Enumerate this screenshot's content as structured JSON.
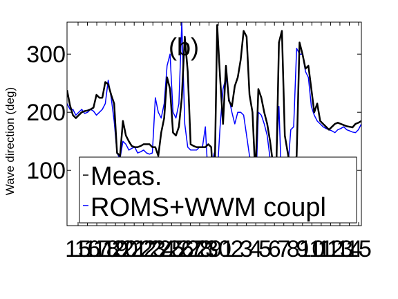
{
  "chart_data": {
    "type": "line",
    "panel_label": "(b)",
    "ylabel": "Wave direction (deg)",
    "xlabel": "",
    "ylim": [
      5,
      355
    ],
    "xlim": [
      0,
      100
    ],
    "y_ticks": [
      100,
      200,
      300
    ],
    "x_tick_labels": [
      "15",
      "16",
      "17",
      "18",
      "19",
      "20",
      "21",
      "22",
      "23",
      "24",
      "25",
      "26",
      "27",
      "28",
      "29",
      "30",
      "1",
      "2",
      "3",
      "4",
      "5",
      "6",
      "7",
      "8",
      "9",
      "10",
      "11",
      "12",
      "13",
      "14",
      "15"
    ],
    "grid": false,
    "legend": {
      "placement": "bottom-left",
      "entries": [
        "Meas.",
        "ROMS+WWM coupl"
      ]
    },
    "colors": {
      "measured": "#000000",
      "model": "#0000ff"
    },
    "series": [
      {
        "name": "Meas.",
        "x": [
          0,
          1,
          2,
          3,
          4,
          5,
          6,
          7,
          8,
          9,
          10,
          11,
          12,
          13,
          14,
          15,
          16,
          17,
          18,
          19,
          20,
          21,
          22,
          23,
          24,
          25,
          26,
          27,
          28,
          29,
          30,
          31,
          32,
          33,
          34,
          35,
          36,
          37,
          38,
          39,
          40,
          41,
          42,
          43,
          44,
          45,
          46,
          47,
          48,
          49,
          50,
          51,
          52,
          53,
          54,
          55,
          56,
          57,
          58,
          59,
          60,
          61,
          62,
          63,
          64,
          65,
          66,
          67,
          68,
          69,
          70,
          71,
          72,
          73,
          74,
          75,
          76,
          77,
          78,
          79,
          80,
          81,
          82,
          83,
          84,
          85,
          86,
          87,
          88,
          89,
          90,
          91,
          92,
          93,
          94,
          95,
          96,
          97,
          98,
          99,
          100
        ],
        "y": [
          238,
          212,
          195,
          190,
          195,
          200,
          202,
          203,
          205,
          208,
          230,
          225,
          225,
          252,
          248,
          230,
          215,
          130,
          125,
          185,
          160,
          150,
          142,
          140,
          140,
          142,
          145,
          145,
          145,
          140,
          140,
          125,
          165,
          190,
          260,
          240,
          165,
          160,
          175,
          225,
          330,
          270,
          145,
          142,
          140,
          140,
          140,
          140,
          145,
          140,
          40,
          350,
          260,
          180,
          280,
          220,
          210,
          245,
          260,
          290,
          340,
          330,
          230,
          200,
          90,
          240,
          225,
          200,
          180,
          150,
          110,
          80,
          320,
          340,
          160,
          130,
          100,
          105,
          125,
          320,
          300,
          275,
          280,
          240,
          200,
          215,
          185,
          180,
          175,
          170,
          175,
          180,
          182,
          180,
          178,
          176,
          175,
          174,
          180,
          182,
          185
        ]
      },
      {
        "name": "ROMS+WWM coupl",
        "x": [
          0,
          1,
          2,
          3,
          4,
          5,
          6,
          7,
          8,
          9,
          10,
          11,
          12,
          13,
          14,
          15,
          16,
          17,
          18,
          19,
          20,
          21,
          22,
          23,
          24,
          25,
          26,
          27,
          28,
          29,
          30,
          31,
          32,
          33,
          34,
          35,
          36,
          37,
          38,
          39,
          40,
          41,
          42,
          43,
          44,
          45,
          46,
          47,
          48,
          49,
          50,
          51,
          52,
          53,
          54,
          55,
          56,
          57,
          58,
          59,
          60,
          61,
          62,
          63,
          64,
          65,
          66,
          67,
          68,
          69,
          70,
          71,
          72,
          73,
          74,
          75,
          76,
          77,
          78,
          79,
          80,
          81,
          82,
          83,
          84,
          85,
          86,
          87,
          88,
          89,
          90,
          91,
          92,
          93,
          94,
          95,
          96,
          97,
          98,
          99,
          100
        ],
        "y": [
          215,
          205,
          205,
          195,
          200,
          205,
          198,
          200,
          205,
          202,
          195,
          200,
          205,
          215,
          255,
          225,
          185,
          130,
          120,
          150,
          145,
          135,
          138,
          140,
          130,
          132,
          135,
          130,
          128,
          130,
          225,
          200,
          190,
          215,
          280,
          300,
          200,
          190,
          215,
          355,
          180,
          140,
          135,
          135,
          135,
          140,
          140,
          175,
          80,
          105,
          130,
          90,
          175,
          240,
          260,
          225,
          200,
          180,
          200,
          200,
          195,
          160,
          125,
          110,
          45,
          200,
          195,
          180,
          160,
          120,
          105,
          115,
          210,
          60,
          120,
          100,
          170,
          175,
          310,
          300,
          300,
          270,
          260,
          210,
          195,
          185,
          180,
          175,
          172,
          170,
          168,
          165,
          170,
          172,
          175,
          170,
          168,
          166,
          165,
          170,
          180
        ]
      }
    ]
  }
}
